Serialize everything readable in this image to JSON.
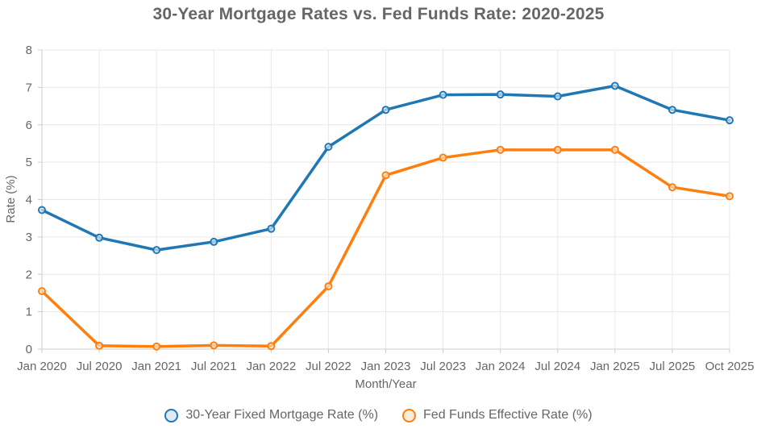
{
  "title": "30-Year Mortgage Rates vs. Fed Funds Rate: 2020-2025",
  "chart_data": {
    "type": "line",
    "title": "30-Year Mortgage Rates vs. Fed Funds Rate: 2020-2025",
    "xlabel": "Month/Year",
    "ylabel": "Rate (%)",
    "ylim": [
      0,
      8
    ],
    "ytick_step": 1,
    "yticks": [
      0,
      1,
      2,
      3,
      4,
      5,
      6,
      7,
      8
    ],
    "grid": true,
    "legend_position": "bottom",
    "categories": [
      "Jan 2020",
      "Jul 2020",
      "Jan 2021",
      "Jul 2021",
      "Jan 2022",
      "Jul 2022",
      "Jan 2023",
      "Jul 2023",
      "Jan 2024",
      "Jul 2024",
      "Jan 2025",
      "Jul 2025",
      "Oct 2025"
    ],
    "series": [
      {
        "name": "30-Year Fixed Mortgage Rate (%)",
        "color": "#1f77b4",
        "marker": "circle",
        "values": [
          3.72,
          2.98,
          2.65,
          2.87,
          3.22,
          5.41,
          6.4,
          6.8,
          6.81,
          6.76,
          7.04,
          6.4,
          6.12
        ]
      },
      {
        "name": "Fed Funds Effective Rate (%)",
        "color": "#ff7f0e",
        "marker": "circle",
        "values": [
          1.55,
          0.09,
          0.07,
          0.1,
          0.08,
          1.68,
          4.65,
          5.12,
          5.33,
          5.33,
          5.33,
          4.33,
          4.09
        ]
      }
    ]
  },
  "colors": {
    "grid": "#e8e8e8",
    "axis": "#cccccc",
    "text": "#666666",
    "title": "#666666",
    "background": "#ffffff"
  }
}
